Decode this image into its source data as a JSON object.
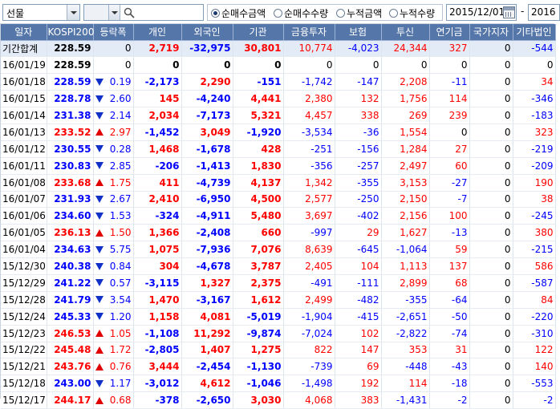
{
  "toolbar": {
    "market_select": "선물",
    "search_value": "",
    "radio_options": [
      "순매수금액",
      "순매수수량",
      "누적금액",
      "누적수량"
    ],
    "radio_selected": 0,
    "date_from": "2015/12/01",
    "date_separator": "-",
    "date_to": "2016"
  },
  "colors": {
    "header_bg": "#5576a8",
    "up": "#ff0000",
    "down": "#0000ff",
    "total_row_bg": "#e3ecf6"
  },
  "columns": [
    "일자",
    "KOSPI200",
    "등락폭",
    "개인",
    "외국인",
    "기관",
    "금융투자",
    "보험",
    "투신",
    "연기금",
    "국가지자",
    "기타법인"
  ],
  "total_row": {
    "label": "기간합계",
    "kospi": "228.59",
    "change": "0",
    "individual": "2,719",
    "foreign": "-32,975",
    "institution": "30,801",
    "fin_invest": "10,774",
    "insurance": "-4,023",
    "trust": "24,344",
    "pension": "327",
    "state": "0",
    "other_corp": "-544"
  },
  "rows": [
    {
      "date": "16/01/19",
      "kospi": "228.59",
      "dir": "none",
      "change": "0",
      "individual": "0",
      "foreign": "0",
      "institution": "0",
      "fin_invest": "0",
      "insurance": "0",
      "trust": "0",
      "pension": "0",
      "state": "0",
      "other_corp": "0"
    },
    {
      "date": "16/01/18",
      "kospi": "228.59",
      "dir": "down",
      "change": "0.19",
      "individual": "-2,173",
      "foreign": "2,290",
      "institution": "-151",
      "fin_invest": "-1,742",
      "insurance": "-147",
      "trust": "2,208",
      "pension": "-11",
      "state": "0",
      "other_corp": "34"
    },
    {
      "date": "16/01/15",
      "kospi": "228.78",
      "dir": "down",
      "change": "2.60",
      "individual": "145",
      "foreign": "-4,240",
      "institution": "4,441",
      "fin_invest": "2,380",
      "insurance": "132",
      "trust": "1,756",
      "pension": "114",
      "state": "0",
      "other_corp": "-346"
    },
    {
      "date": "16/01/14",
      "kospi": "231.38",
      "dir": "down",
      "change": "2.14",
      "individual": "2,034",
      "foreign": "-7,173",
      "institution": "5,321",
      "fin_invest": "4,457",
      "insurance": "338",
      "trust": "269",
      "pension": "239",
      "state": "0",
      "other_corp": "-183"
    },
    {
      "date": "16/01/13",
      "kospi": "233.52",
      "dir": "up",
      "change": "2.97",
      "individual": "-1,452",
      "foreign": "3,049",
      "institution": "-1,920",
      "fin_invest": "-3,534",
      "insurance": "-36",
      "trust": "1,554",
      "pension": "0",
      "state": "0",
      "other_corp": "323"
    },
    {
      "date": "16/01/12",
      "kospi": "230.55",
      "dir": "down",
      "change": "0.28",
      "individual": "1,468",
      "foreign": "-1,678",
      "institution": "428",
      "fin_invest": "-251",
      "insurance": "-156",
      "trust": "1,284",
      "pension": "27",
      "state": "0",
      "other_corp": "-219"
    },
    {
      "date": "16/01/11",
      "kospi": "230.83",
      "dir": "down",
      "change": "2.85",
      "individual": "-206",
      "foreign": "-1,413",
      "institution": "1,830",
      "fin_invest": "-356",
      "insurance": "-257",
      "trust": "2,497",
      "pension": "60",
      "state": "0",
      "other_corp": "-209"
    },
    {
      "date": "16/01/08",
      "kospi": "233.68",
      "dir": "up",
      "change": "1.75",
      "individual": "411",
      "foreign": "-4,739",
      "institution": "4,137",
      "fin_invest": "1,342",
      "insurance": "-355",
      "trust": "3,153",
      "pension": "-27",
      "state": "0",
      "other_corp": "190"
    },
    {
      "date": "16/01/07",
      "kospi": "231.93",
      "dir": "down",
      "change": "2.67",
      "individual": "2,410",
      "foreign": "-6,950",
      "institution": "4,500",
      "fin_invest": "2,577",
      "insurance": "-250",
      "trust": "2,150",
      "pension": "-7",
      "state": "0",
      "other_corp": "38"
    },
    {
      "date": "16/01/06",
      "kospi": "234.60",
      "dir": "down",
      "change": "1.53",
      "individual": "-324",
      "foreign": "-4,911",
      "institution": "5,480",
      "fin_invest": "3,697",
      "insurance": "-402",
      "trust": "2,156",
      "pension": "100",
      "state": "0",
      "other_corp": "-245"
    },
    {
      "date": "16/01/05",
      "kospi": "236.13",
      "dir": "up",
      "change": "1.50",
      "individual": "1,366",
      "foreign": "-2,408",
      "institution": "660",
      "fin_invest": "-997",
      "insurance": "29",
      "trust": "1,627",
      "pension": "-13",
      "state": "0",
      "other_corp": "380"
    },
    {
      "date": "16/01/04",
      "kospi": "234.63",
      "dir": "down",
      "change": "5.75",
      "individual": "1,075",
      "foreign": "-7,936",
      "institution": "7,076",
      "fin_invest": "8,639",
      "insurance": "-645",
      "trust": "-1,064",
      "pension": "59",
      "state": "0",
      "other_corp": "-215"
    },
    {
      "date": "15/12/30",
      "kospi": "240.38",
      "dir": "down",
      "change": "0.84",
      "individual": "304",
      "foreign": "-4,678",
      "institution": "3,787",
      "fin_invest": "2,405",
      "insurance": "104",
      "trust": "1,113",
      "pension": "137",
      "state": "0",
      "other_corp": "586"
    },
    {
      "date": "15/12/29",
      "kospi": "241.22",
      "dir": "down",
      "change": "0.57",
      "individual": "-3,115",
      "foreign": "1,327",
      "institution": "2,375",
      "fin_invest": "-491",
      "insurance": "-111",
      "trust": "2,899",
      "pension": "68",
      "state": "0",
      "other_corp": "-587"
    },
    {
      "date": "15/12/28",
      "kospi": "241.79",
      "dir": "down",
      "change": "3.54",
      "individual": "1,470",
      "foreign": "-3,167",
      "institution": "1,612",
      "fin_invest": "2,499",
      "insurance": "-482",
      "trust": "-355",
      "pension": "-64",
      "state": "0",
      "other_corp": "84"
    },
    {
      "date": "15/12/24",
      "kospi": "245.33",
      "dir": "down",
      "change": "1.20",
      "individual": "1,158",
      "foreign": "4,081",
      "institution": "-5,019",
      "fin_invest": "-1,904",
      "insurance": "-415",
      "trust": "-2,651",
      "pension": "-50",
      "state": "0",
      "other_corp": "-220"
    },
    {
      "date": "15/12/23",
      "kospi": "246.53",
      "dir": "up",
      "change": "1.05",
      "individual": "-1,108",
      "foreign": "11,292",
      "institution": "-9,874",
      "fin_invest": "-7,024",
      "insurance": "102",
      "trust": "-2,822",
      "pension": "-74",
      "state": "0",
      "other_corp": "-310"
    },
    {
      "date": "15/12/22",
      "kospi": "245.48",
      "dir": "up",
      "change": "1.72",
      "individual": "-2,805",
      "foreign": "1,407",
      "institution": "1,275",
      "fin_invest": "822",
      "insurance": "147",
      "trust": "353",
      "pension": "31",
      "state": "0",
      "other_corp": "122"
    },
    {
      "date": "15/12/21",
      "kospi": "243.76",
      "dir": "up",
      "change": "0.76",
      "individual": "3,444",
      "foreign": "-2,454",
      "institution": "-1,130",
      "fin_invest": "-739",
      "insurance": "69",
      "trust": "-448",
      "pension": "-43",
      "state": "0",
      "other_corp": "140"
    },
    {
      "date": "15/12/18",
      "kospi": "243.00",
      "dir": "down",
      "change": "1.17",
      "individual": "-3,012",
      "foreign": "4,612",
      "institution": "-1,046",
      "fin_invest": "-1,498",
      "insurance": "192",
      "trust": "114",
      "pension": "-18",
      "state": "0",
      "other_corp": "-553"
    },
    {
      "date": "15/12/17",
      "kospi": "244.17",
      "dir": "up",
      "change": "0.68",
      "individual": "-378",
      "foreign": "-2,650",
      "institution": "3,030",
      "fin_invest": "4,068",
      "insurance": "383",
      "trust": "-1,431",
      "pension": "-2",
      "state": "0",
      "other_corp": "-2"
    }
  ]
}
